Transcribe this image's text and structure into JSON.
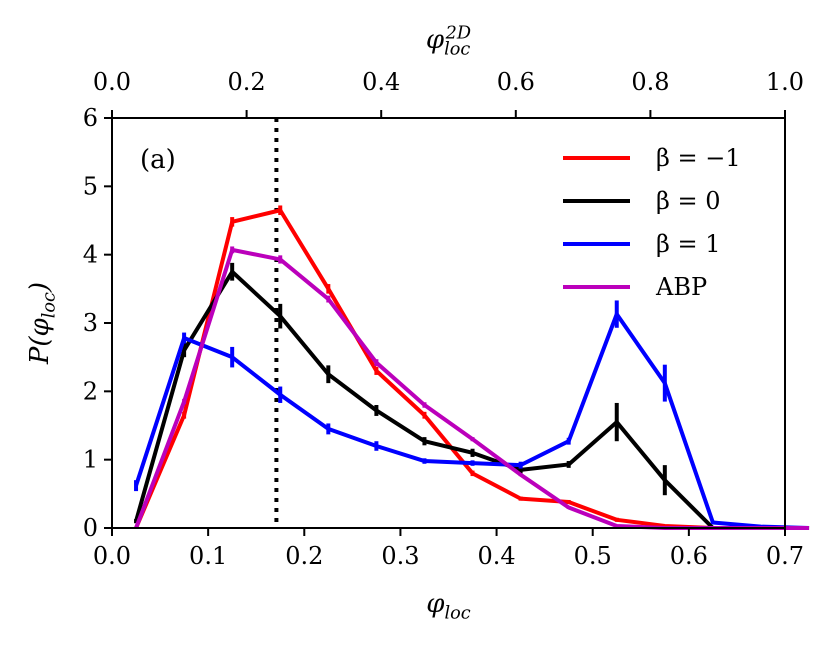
{
  "chart_data": {
    "type": "line",
    "xlabel": "φ_loc",
    "ylabel": "P(φ_loc)",
    "top_xlabel": "φ_loc^2D",
    "xlim": [
      0,
      0.7
    ],
    "ylim": [
      0,
      6
    ],
    "top_xlim": [
      0,
      1.0
    ],
    "x_ticks": [
      "0.0",
      "0.1",
      "0.2",
      "0.3",
      "0.4",
      "0.5",
      "0.6",
      "0.7"
    ],
    "y_ticks": [
      "0",
      "1",
      "2",
      "3",
      "4",
      "5",
      "6"
    ],
    "top_x_ticks": [
      "0.0",
      "0.2",
      "0.4",
      "0.6",
      "0.8",
      "1.0"
    ],
    "annotation": "(a)",
    "vline_x": 0.171,
    "legend_position": "top-right",
    "x": [
      0.025,
      0.075,
      0.125,
      0.175,
      0.225,
      0.275,
      0.325,
      0.375,
      0.425,
      0.475,
      0.525,
      0.575,
      0.625,
      0.675,
      0.725
    ],
    "series": [
      {
        "name": "β = −1",
        "color": "#ff0000",
        "values": [
          0.0,
          1.65,
          4.48,
          4.65,
          3.5,
          2.3,
          1.65,
          0.8,
          0.43,
          0.38,
          0.12,
          0.03,
          0.0,
          0.0,
          0.0
        ],
        "errors": [
          0,
          0.05,
          0.07,
          0.07,
          0.07,
          0.06,
          0.05,
          0.04,
          0.03,
          0.03,
          0.03,
          0.02,
          0,
          0,
          0
        ]
      },
      {
        "name": "β = 0",
        "color": "#000000",
        "values": [
          0.1,
          2.6,
          3.75,
          3.1,
          2.25,
          1.72,
          1.27,
          1.1,
          0.85,
          0.93,
          1.55,
          0.7,
          0.0,
          0.0,
          0.0
        ],
        "errors": [
          0.03,
          0.1,
          0.13,
          0.18,
          0.13,
          0.08,
          0.06,
          0.06,
          0.05,
          0.05,
          0.28,
          0.22,
          0,
          0,
          0
        ]
      },
      {
        "name": "β = 1",
        "color": "#0000ff",
        "values": [
          0.62,
          2.78,
          2.5,
          1.95,
          1.45,
          1.2,
          0.98,
          0.95,
          0.92,
          1.27,
          3.13,
          2.12,
          0.08,
          0.02,
          0.0
        ],
        "errors": [
          0.08,
          0.08,
          0.15,
          0.12,
          0.08,
          0.07,
          0.04,
          0.04,
          0.05,
          0.05,
          0.2,
          0.27,
          0.02,
          0,
          0
        ]
      },
      {
        "name": "ABP",
        "color": "#bb00bb",
        "values": [
          0.0,
          1.85,
          4.07,
          3.93,
          3.35,
          2.42,
          1.8,
          1.3,
          0.78,
          0.3,
          0.03,
          0.0,
          0.0,
          0.0,
          0.0
        ],
        "errors": [
          0,
          0.04,
          0.05,
          0.06,
          0.05,
          0.05,
          0.04,
          0.03,
          0.02,
          0.02,
          0.01,
          0,
          0,
          0,
          0
        ]
      }
    ]
  }
}
